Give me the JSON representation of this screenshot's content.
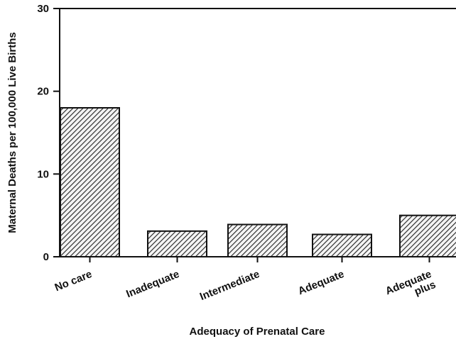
{
  "chart_data": {
    "type": "bar",
    "title": "",
    "xlabel": "Adequacy of Prenatal Care",
    "ylabel": "Maternal Deaths per 100,000 Live Births",
    "categories": [
      [
        "No care"
      ],
      [
        "Inadequate"
      ],
      [
        "Intermediate"
      ],
      [
        "Adequate"
      ],
      [
        "Adequate",
        "plus"
      ]
    ],
    "values": [
      18,
      3.1,
      3.9,
      2.7,
      5.0
    ],
    "ylim": [
      0,
      30
    ],
    "yticks": [
      0,
      10,
      20,
      30
    ],
    "grid": false,
    "bar_fill": "hatched",
    "colors": {
      "bar_stroke": "#111111",
      "hatch": "#222222",
      "axis": "#111111"
    }
  }
}
